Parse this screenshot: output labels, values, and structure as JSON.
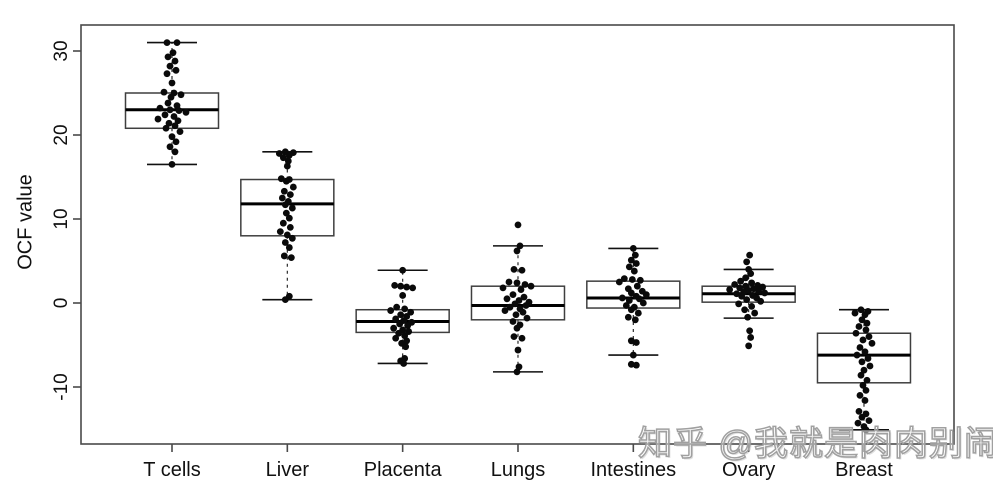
{
  "watermark": {
    "text": "知乎 @我就是肉肉别闹",
    "color": "#a0a0a0"
  },
  "colors": {
    "dot": "#0a0a0a",
    "box_stroke": "#3f3f3f",
    "median": "#000000",
    "axis": "#4a4a4a",
    "tick_text": "#111111",
    "background": "#ffffff"
  },
  "chart_data": {
    "type": "boxplot",
    "title": "",
    "xlabel": "",
    "ylabel": "OCF value",
    "y_ticks": [
      -10,
      0,
      10,
      20,
      30
    ],
    "ylim": [
      -16.8,
      33.1
    ],
    "grid": false,
    "legend": null,
    "categories": [
      "T cells",
      "Liver",
      "Placenta",
      "Lungs",
      "Intestines",
      "Ovary",
      "Breast"
    ],
    "boxes": [
      {
        "category": "T cells",
        "whisker_low": 16.5,
        "q1": 20.8,
        "median": 23.0,
        "q3": 25.0,
        "whisker_high": 31.0
      },
      {
        "category": "Liver",
        "whisker_low": 0.4,
        "q1": 8.0,
        "median": 11.8,
        "q3": 14.7,
        "whisker_high": 18.0
      },
      {
        "category": "Placenta",
        "whisker_low": -7.2,
        "q1": -3.5,
        "median": -2.2,
        "q3": -0.8,
        "whisker_high": 3.9
      },
      {
        "category": "Lungs",
        "whisker_low": -8.2,
        "q1": -2.0,
        "median": -0.3,
        "q3": 2.0,
        "whisker_high": 6.8
      },
      {
        "category": "Intestines",
        "whisker_low": -6.2,
        "q1": -0.6,
        "median": 0.6,
        "q3": 2.6,
        "whisker_high": 6.5
      },
      {
        "category": "Ovary",
        "whisker_low": -1.8,
        "q1": 0.1,
        "median": 1.1,
        "q3": 2.0,
        "whisker_high": 4.0
      },
      {
        "category": "Breast",
        "whisker_low": -15.1,
        "q1": -9.5,
        "median": -6.2,
        "q3": -3.6,
        "whisker_high": -0.8
      }
    ],
    "points": [
      [
        [
          31,
          -5
        ],
        [
          31,
          5
        ],
        [
          29.8,
          1
        ],
        [
          29.3,
          -4
        ],
        [
          28.8,
          3
        ],
        [
          28.2,
          -2
        ],
        [
          27.7,
          4
        ],
        [
          27.3,
          -5
        ],
        [
          26.2,
          0
        ],
        [
          25.1,
          -8
        ],
        [
          25.0,
          2
        ],
        [
          24.8,
          9
        ],
        [
          24.5,
          -1
        ],
        [
          23.8,
          -4
        ],
        [
          23.5,
          5
        ],
        [
          23.2,
          -12
        ],
        [
          23.0,
          -2
        ],
        [
          22.9,
          7
        ],
        [
          22.7,
          14
        ],
        [
          22.4,
          -7
        ],
        [
          22.2,
          2
        ],
        [
          21.9,
          -14
        ],
        [
          21.7,
          6
        ],
        [
          21.4,
          -3
        ],
        [
          21.1,
          3
        ],
        [
          20.8,
          -6
        ],
        [
          20.4,
          8
        ],
        [
          19.8,
          0
        ],
        [
          19.2,
          4
        ],
        [
          18.6,
          -2
        ],
        [
          18.0,
          3
        ],
        [
          16.5,
          0
        ]
      ],
      [
        [
          18.0,
          -2
        ],
        [
          17.9,
          6
        ],
        [
          17.8,
          -8
        ],
        [
          17.6,
          2
        ],
        [
          17.3,
          -4
        ],
        [
          16.9,
          1
        ],
        [
          16.3,
          0
        ],
        [
          14.8,
          -6
        ],
        [
          14.7,
          2
        ],
        [
          14.5,
          -1
        ],
        [
          13.8,
          6
        ],
        [
          13.3,
          -3
        ],
        [
          12.9,
          3
        ],
        [
          12.5,
          -5
        ],
        [
          12.1,
          1
        ],
        [
          11.7,
          -2
        ],
        [
          11.3,
          5
        ],
        [
          10.7,
          -1
        ],
        [
          10.1,
          2
        ],
        [
          9.5,
          -4
        ],
        [
          9.0,
          3
        ],
        [
          8.5,
          -7
        ],
        [
          8.1,
          0
        ],
        [
          7.7,
          5
        ],
        [
          7.2,
          -2
        ],
        [
          6.6,
          2
        ],
        [
          5.6,
          -3
        ],
        [
          5.4,
          4
        ],
        [
          0.8,
          2
        ],
        [
          0.4,
          -2
        ]
      ],
      [
        [
          3.9,
          0
        ],
        [
          2.1,
          -8
        ],
        [
          2.0,
          -2
        ],
        [
          1.9,
          4
        ],
        [
          1.8,
          10
        ],
        [
          0.9,
          0
        ],
        [
          -0.5,
          -6
        ],
        [
          -0.7,
          2
        ],
        [
          -0.9,
          -12
        ],
        [
          -1.1,
          8
        ],
        [
          -1.4,
          -2
        ],
        [
          -1.6,
          4
        ],
        [
          -1.9,
          -7
        ],
        [
          -2.1,
          1
        ],
        [
          -2.3,
          9
        ],
        [
          -2.5,
          -3
        ],
        [
          -2.7,
          5
        ],
        [
          -3.0,
          -9
        ],
        [
          -3.2,
          0
        ],
        [
          -3.4,
          6
        ],
        [
          -3.6,
          -4
        ],
        [
          -3.9,
          2
        ],
        [
          -4.2,
          -7
        ],
        [
          -4.5,
          4
        ],
        [
          -4.8,
          -1
        ],
        [
          -5.2,
          3
        ],
        [
          -6.6,
          2
        ],
        [
          -6.9,
          -2
        ],
        [
          -7.2,
          1
        ]
      ],
      [
        [
          9.3,
          0
        ],
        [
          6.8,
          2
        ],
        [
          6.2,
          -1
        ],
        [
          4.0,
          -4
        ],
        [
          3.9,
          4
        ],
        [
          2.5,
          -9
        ],
        [
          2.4,
          -1
        ],
        [
          2.2,
          7
        ],
        [
          2.0,
          13
        ],
        [
          1.8,
          -15
        ],
        [
          1.6,
          3
        ],
        [
          1.0,
          -5
        ],
        [
          0.7,
          6
        ],
        [
          0.5,
          -11
        ],
        [
          0.3,
          1
        ],
        [
          0.1,
          11
        ],
        [
          -0.1,
          -3
        ],
        [
          -0.3,
          8
        ],
        [
          -0.5,
          -8
        ],
        [
          -0.7,
          2
        ],
        [
          -0.9,
          -13
        ],
        [
          -1.1,
          5
        ],
        [
          -1.4,
          -2
        ],
        [
          -1.8,
          9
        ],
        [
          -2.2,
          -5
        ],
        [
          -2.6,
          2
        ],
        [
          -3.0,
          -1
        ],
        [
          -4.0,
          -4
        ],
        [
          -4.2,
          4
        ],
        [
          -5.6,
          0
        ],
        [
          -7.6,
          1
        ],
        [
          -8.2,
          -1
        ]
      ],
      [
        [
          6.5,
          0
        ],
        [
          5.7,
          2
        ],
        [
          5.1,
          -2
        ],
        [
          4.7,
          3
        ],
        [
          4.3,
          -4
        ],
        [
          3.8,
          1
        ],
        [
          2.9,
          -9
        ],
        [
          2.8,
          -1
        ],
        [
          2.7,
          7
        ],
        [
          2.5,
          -14
        ],
        [
          2.0,
          4
        ],
        [
          1.7,
          -5
        ],
        [
          1.4,
          9
        ],
        [
          1.2,
          -2
        ],
        [
          1.0,
          13
        ],
        [
          0.8,
          3
        ],
        [
          0.6,
          -11
        ],
        [
          0.5,
          6
        ],
        [
          0.3,
          -4
        ],
        [
          0.0,
          10
        ],
        [
          -0.3,
          -7
        ],
        [
          -0.5,
          1
        ],
        [
          -0.8,
          -2
        ],
        [
          -1.2,
          5
        ],
        [
          -1.7,
          -5
        ],
        [
          -2.0,
          2
        ],
        [
          -4.5,
          -2
        ],
        [
          -4.7,
          3
        ],
        [
          -6.2,
          0
        ],
        [
          -7.3,
          -2
        ],
        [
          -7.4,
          3
        ]
      ],
      [
        [
          5.7,
          1
        ],
        [
          4.9,
          -2
        ],
        [
          4.0,
          0
        ],
        [
          3.5,
          2
        ],
        [
          3.0,
          -3
        ],
        [
          2.6,
          -8
        ],
        [
          2.4,
          3
        ],
        [
          2.2,
          -14
        ],
        [
          2.1,
          9
        ],
        [
          2.0,
          -3
        ],
        [
          1.9,
          14
        ],
        [
          1.8,
          -9
        ],
        [
          1.7,
          5
        ],
        [
          1.6,
          -19
        ],
        [
          1.5,
          0
        ],
        [
          1.4,
          10
        ],
        [
          1.3,
          -5
        ],
        [
          1.2,
          16
        ],
        [
          1.1,
          -12
        ],
        [
          0.9,
          4
        ],
        [
          0.8,
          -7
        ],
        [
          0.6,
          8
        ],
        [
          0.4,
          -2
        ],
        [
          0.2,
          12
        ],
        [
          -0.1,
          -10
        ],
        [
          -0.4,
          3
        ],
        [
          -0.8,
          -4
        ],
        [
          -1.2,
          6
        ],
        [
          -1.7,
          -1
        ],
        [
          -3.3,
          1
        ],
        [
          -4.1,
          2
        ],
        [
          -5.1,
          0
        ]
      ],
      [
        [
          -0.8,
          -3
        ],
        [
          -1.0,
          4
        ],
        [
          -1.2,
          -9
        ],
        [
          -1.4,
          1
        ],
        [
          -2.0,
          -2
        ],
        [
          -2.4,
          3
        ],
        [
          -2.8,
          -5
        ],
        [
          -3.2,
          2
        ],
        [
          -3.6,
          -8
        ],
        [
          -4.0,
          5
        ],
        [
          -4.4,
          -1
        ],
        [
          -4.8,
          8
        ],
        [
          -5.3,
          -4
        ],
        [
          -5.8,
          1
        ],
        [
          -6.2,
          -7
        ],
        [
          -6.6,
          4
        ],
        [
          -7.0,
          -2
        ],
        [
          -7.5,
          6
        ],
        [
          -8.0,
          0
        ],
        [
          -8.6,
          -3
        ],
        [
          -9.2,
          3
        ],
        [
          -9.8,
          -1
        ],
        [
          -10.4,
          2
        ],
        [
          -11.0,
          -4
        ],
        [
          -11.6,
          1
        ],
        [
          -12.9,
          -5
        ],
        [
          -13.2,
          2
        ],
        [
          -13.6,
          -2
        ],
        [
          -14.0,
          5
        ],
        [
          -14.3,
          -6
        ],
        [
          -14.7,
          0
        ],
        [
          -15.1,
          2
        ]
      ]
    ]
  }
}
